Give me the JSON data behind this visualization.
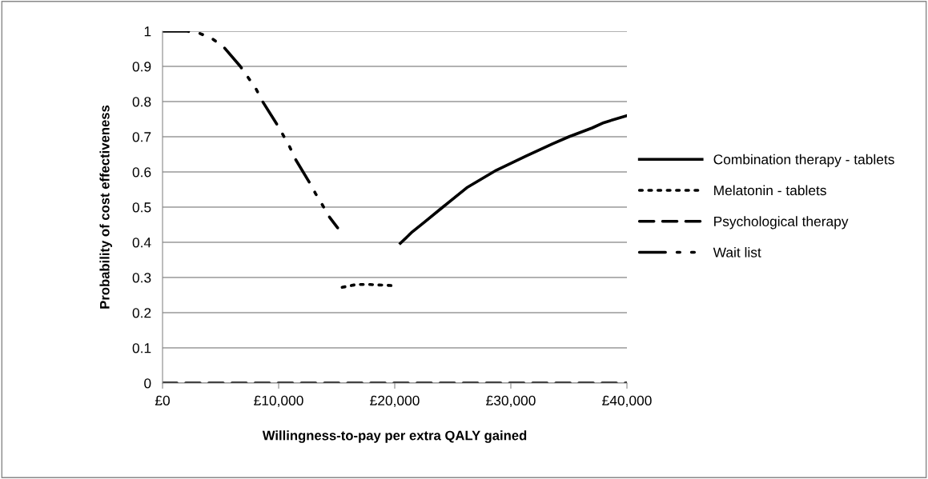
{
  "chart_data": {
    "type": "line",
    "xlabel": "Willingness-to-pay per extra QALY gained",
    "ylabel": "Probability of cost effectiveness",
    "xlim": [
      0,
      40000
    ],
    "ylim": [
      0,
      1
    ],
    "xticks": [
      {
        "value": 0,
        "label": "£0"
      },
      {
        "value": 10000,
        "label": "£10,000"
      },
      {
        "value": 20000,
        "label": "£20,000"
      },
      {
        "value": 30000,
        "label": "£30,000"
      },
      {
        "value": 40000,
        "label": "£40,000"
      }
    ],
    "yticks": [
      0,
      0.1,
      0.2,
      0.3,
      0.4,
      0.5,
      0.6,
      0.7,
      0.8,
      0.9,
      1
    ],
    "grid": "y",
    "legend": "right",
    "marker": "none",
    "series": [
      {
        "name": "Combination therapy - tablets",
        "color": "#000000",
        "line_style": "solid",
        "x": [
          20480,
          21520,
          22550,
          24140,
          26200,
          28760,
          31310,
          33590,
          35000,
          37000,
          38000,
          40000
        ],
        "values": [
          0.397,
          0.43,
          0.457,
          0.5,
          0.555,
          0.605,
          0.645,
          0.68,
          0.7,
          0.725,
          0.74,
          0.76
        ]
      },
      {
        "name": "Melatonin - tablets",
        "color": "#000000",
        "line_style": "dotted",
        "x": [
          15470,
          16690,
          17880,
          19750
        ],
        "values": [
          0.272,
          0.28,
          0.28,
          0.277
        ]
      },
      {
        "name": "Psychological therapy",
        "color": "#000000",
        "line_style": "dashed",
        "x": [
          0,
          40000
        ],
        "values": [
          0,
          0
        ]
      },
      {
        "name": "Wait list",
        "color": "#000000",
        "line_style": "dashdotdot",
        "x": [
          0,
          2100,
          3200,
          4350,
          5300,
          6700,
          7400,
          8070,
          8620,
          9800,
          10350,
          10970,
          11450,
          12620,
          13170,
          13790,
          14410,
          15080
        ],
        "values": [
          1,
          1,
          0.994,
          0.977,
          0.954,
          0.9,
          0.867,
          0.835,
          0.8,
          0.738,
          0.707,
          0.67,
          0.636,
          0.572,
          0.539,
          0.505,
          0.47,
          0.441
        ]
      }
    ]
  }
}
